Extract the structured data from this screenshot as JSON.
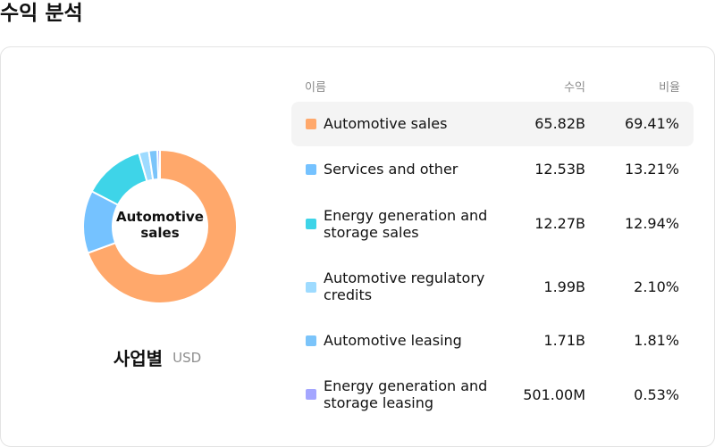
{
  "page": {
    "title": "수익 분석"
  },
  "donut": {
    "center_label": "Automotive sales"
  },
  "caption": {
    "title": "사업별",
    "unit": "USD"
  },
  "table": {
    "headers": {
      "name": "이름",
      "revenue": "수익",
      "ratio": "비율"
    },
    "rows": [
      {
        "name": "Automotive sales",
        "revenue": "65.82B",
        "ratio": "69.41%",
        "percent": 69.41,
        "color": "#FFA86B"
      },
      {
        "name": "Services and other",
        "revenue": "12.53B",
        "ratio": "13.21%",
        "percent": 13.21,
        "color": "#75C2FF"
      },
      {
        "name": "Energy generation and storage sales",
        "revenue": "12.27B",
        "ratio": "12.94%",
        "percent": 12.94,
        "color": "#3ED4E8"
      },
      {
        "name": "Automotive regulatory credits",
        "revenue": "1.99B",
        "ratio": "2.10%",
        "percent": 2.1,
        "color": "#9EDBFF"
      },
      {
        "name": "Automotive leasing",
        "revenue": "1.71B",
        "ratio": "1.81%",
        "percent": 1.81,
        "color": "#7BC4FA"
      },
      {
        "name": "Energy generation and storage leasing",
        "revenue": "501.00M",
        "ratio": "0.53%",
        "percent": 0.53,
        "color": "#A4A6FF"
      }
    ]
  }
}
